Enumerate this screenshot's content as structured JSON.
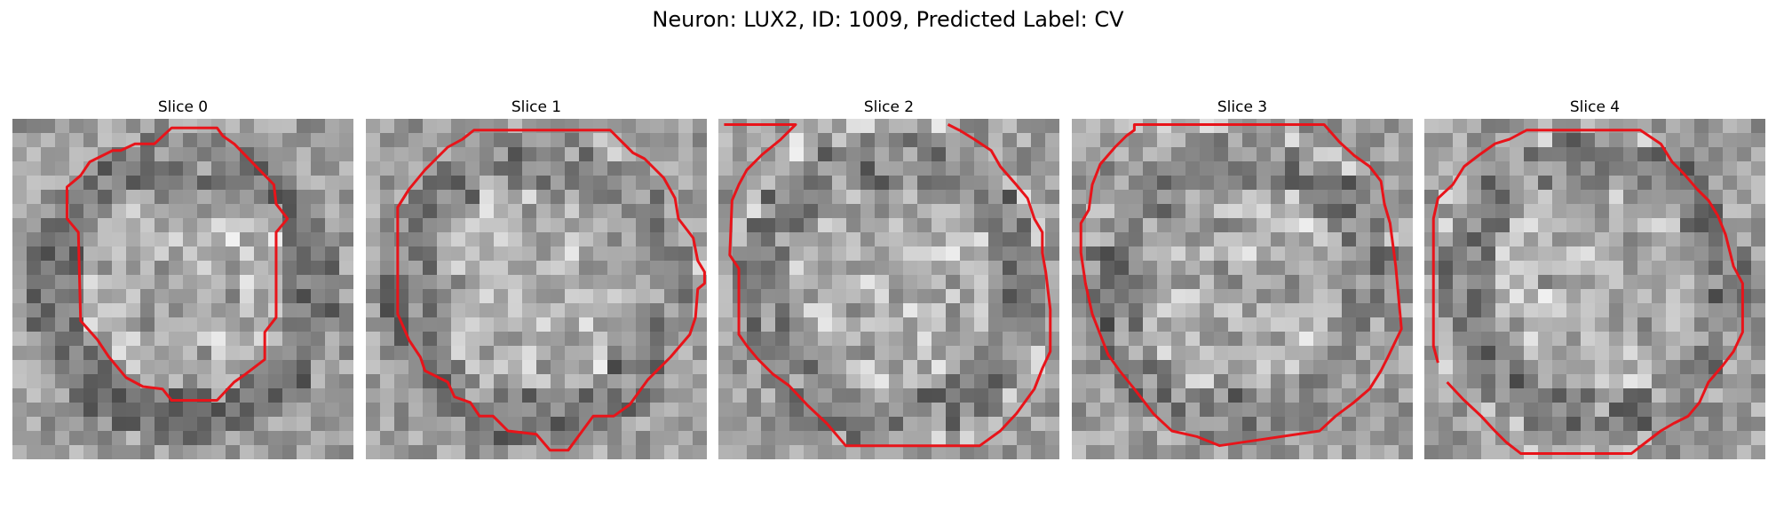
{
  "figure": {
    "title": "Neuron: LUX2, ID: 1009, Predicted Label: CV"
  },
  "contour_color": "#e8141a",
  "slices": [
    {
      "title": "Slice 0"
    },
    {
      "title": "Slice 1"
    },
    {
      "title": "Slice 2"
    },
    {
      "title": "Slice 3"
    },
    {
      "title": "Slice 4"
    }
  ]
}
